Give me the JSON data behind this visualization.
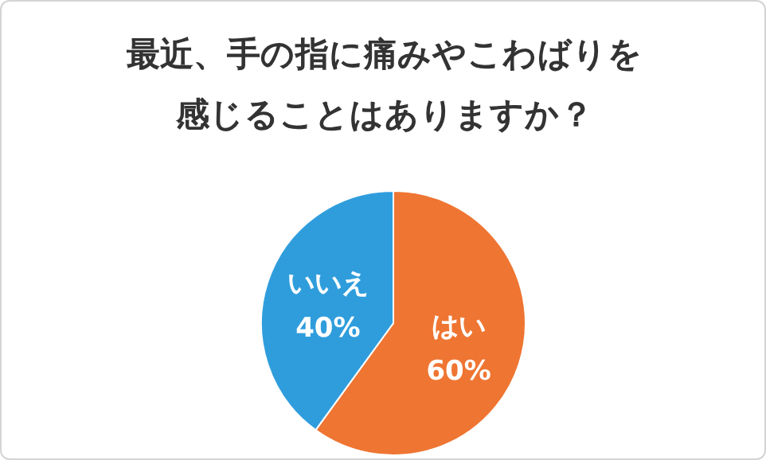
{
  "chart_data": {
    "type": "pie",
    "title": "最近、手の指に痛みやこわばりを感じることはありますか？",
    "categories": [
      "はい",
      "いいえ"
    ],
    "values": [
      60,
      40
    ],
    "colors": [
      "#ef7532",
      "#2f9ddc"
    ],
    "value_labels": [
      "60%",
      "40%"
    ]
  }
}
